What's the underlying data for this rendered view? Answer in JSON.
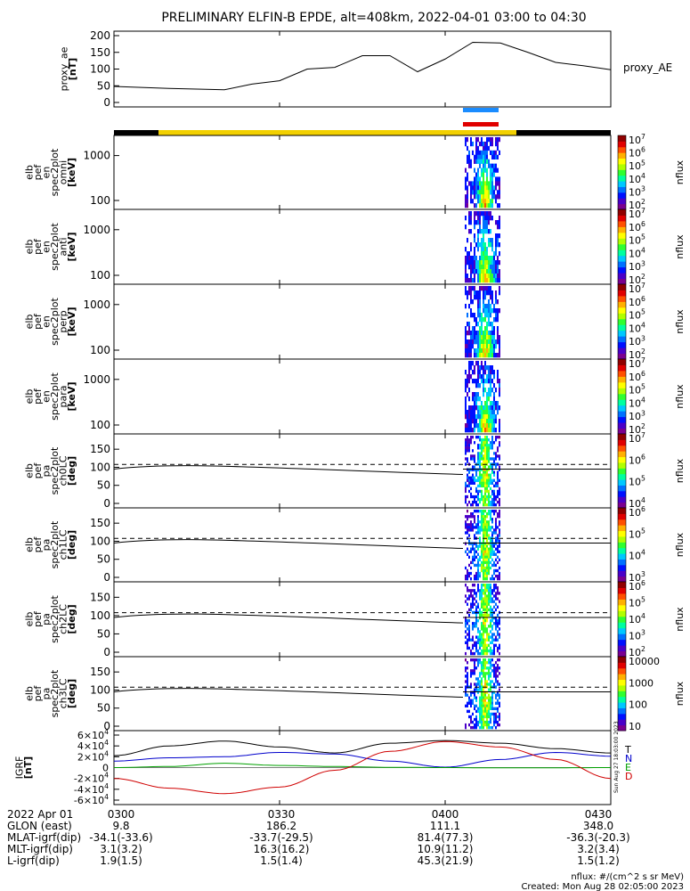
{
  "title": "PRELIMINARY ELFIN-B EPDE, alt=408km, 2022-04-01 03:00 to 04:30",
  "colors": {
    "ae": "#000000",
    "sunlit_bar": "#f2d000",
    "night_bar": "#000000",
    "blue_marker": "#1a8cff",
    "red_marker": "#e00000",
    "igrf_T": "#000000",
    "igrf_N": "#0000cc",
    "igrf_E": "#00a000",
    "igrf_D": "#d00000"
  },
  "chart_data": [
    {
      "type": "line",
      "panel": "proxy_ae",
      "ylabel": [
        "proxy_ae",
        "[nT]"
      ],
      "right_label": "proxy_AE",
      "ylim": [
        0,
        200
      ],
      "yticks": [
        "0",
        "50",
        "100",
        "150",
        "200"
      ],
      "x_minutes": [
        0,
        10,
        15,
        20,
        25,
        30,
        35,
        40,
        45,
        50,
        55,
        60,
        65,
        70,
        75,
        80,
        85,
        90
      ],
      "values": [
        48,
        42,
        40,
        38,
        55,
        65,
        100,
        105,
        140,
        140,
        92,
        130,
        180,
        178,
        150,
        120,
        110,
        98
      ]
    },
    {
      "type": "heatmap",
      "panel": "omni",
      "ylabel": [
        "elb",
        "pef",
        "en",
        "spec2plot",
        "omni",
        "[keV]"
      ],
      "scale": "log",
      "yticks": [
        "100",
        "1000"
      ],
      "colorbar_label": "nflux",
      "colorbar_ticks": [
        "10^2",
        "10^3",
        "10^4",
        "10^5",
        "10^6",
        "10^7"
      ]
    },
    {
      "type": "heatmap",
      "panel": "anti",
      "ylabel": [
        "elb",
        "pef",
        "en",
        "spec2plot",
        "anti",
        "[keV]"
      ],
      "scale": "log",
      "yticks": [
        "100",
        "1000"
      ],
      "colorbar_label": "nflux",
      "colorbar_ticks": [
        "10^2",
        "10^3",
        "10^4",
        "10^5",
        "10^6",
        "10^7"
      ]
    },
    {
      "type": "heatmap",
      "panel": "perp",
      "ylabel": [
        "elb",
        "pef",
        "en",
        "spec2plot",
        "perp",
        "[keV]"
      ],
      "scale": "log",
      "yticks": [
        "100",
        "1000"
      ],
      "colorbar_label": "nflux",
      "colorbar_ticks": [
        "10^2",
        "10^3",
        "10^4",
        "10^5",
        "10^6",
        "10^7"
      ]
    },
    {
      "type": "heatmap",
      "panel": "para",
      "ylabel": [
        "elb",
        "pef",
        "en",
        "spec2plot",
        "para",
        "[keV]"
      ],
      "scale": "log",
      "yticks": [
        "100",
        "1000"
      ],
      "colorbar_label": "nflux",
      "colorbar_ticks": [
        "10^2",
        "10^3",
        "10^4",
        "10^5",
        "10^6",
        "10^7"
      ]
    },
    {
      "type": "heatmap",
      "panel": "ch0LC",
      "ylabel": [
        "elb",
        "pef",
        "pa",
        "spec2plot",
        "ch0LC",
        "[deg]"
      ],
      "ylim": [
        0,
        180
      ],
      "yticks": [
        "0",
        "50",
        "100",
        "150"
      ],
      "colorbar_label": "nflux",
      "colorbar_ticks": [
        "10^4",
        "10^5",
        "10^6",
        "10^7"
      ]
    },
    {
      "type": "heatmap",
      "panel": "ch1LC",
      "ylabel": [
        "elb",
        "pef",
        "pa",
        "spec2plot",
        "ch1LC",
        "[deg]"
      ],
      "ylim": [
        0,
        180
      ],
      "yticks": [
        "0",
        "50",
        "100",
        "150"
      ],
      "colorbar_label": "nflux",
      "colorbar_ticks": [
        "10^3",
        "10^4",
        "10^5",
        "10^6"
      ]
    },
    {
      "type": "heatmap",
      "panel": "ch2LC",
      "ylabel": [
        "elb",
        "pef",
        "pa",
        "spec2plot",
        "ch2LC",
        "[deg]"
      ],
      "ylim": [
        0,
        180
      ],
      "yticks": [
        "0",
        "50",
        "100",
        "150"
      ],
      "colorbar_label": "nflux",
      "colorbar_ticks": [
        "10^2",
        "10^3",
        "10^4",
        "10^5",
        "10^6"
      ]
    },
    {
      "type": "heatmap",
      "panel": "ch3LC",
      "ylabel": [
        "elb",
        "pef",
        "pa",
        "spec2plot",
        "ch3LC",
        "[deg]"
      ],
      "ylim": [
        0,
        180
      ],
      "yticks": [
        "0",
        "50",
        "100",
        "150"
      ],
      "colorbar_label": "nflux",
      "colorbar_ticks": [
        "10",
        "100",
        "1000",
        "10000"
      ]
    },
    {
      "type": "line",
      "panel": "igrf",
      "ylabel": [
        "IGRF",
        "[nT]"
      ],
      "ylim": [
        -60000,
        60000
      ],
      "yticks": [
        "-6×10^4",
        "-4×10^4",
        "-2×10^4",
        "0",
        "2×10^4",
        "4×10^4",
        "6×10^4"
      ],
      "legend": [
        "T",
        "N",
        "E",
        "D"
      ],
      "side_stamp": "Sun Aug 27 18:03:00 2023",
      "x_minutes": [
        0,
        10,
        20,
        30,
        40,
        50,
        60,
        70,
        80,
        90
      ],
      "series": [
        {
          "name": "T",
          "values": [
            22000,
            40000,
            49000,
            38000,
            27000,
            45000,
            50000,
            45000,
            35000,
            27000
          ]
        },
        {
          "name": "N",
          "values": [
            12000,
            18000,
            20000,
            28000,
            25000,
            12000,
            800,
            15000,
            28000,
            21000
          ]
        },
        {
          "name": "E",
          "values": [
            0,
            2000,
            8000,
            4000,
            2000,
            500,
            0,
            -500,
            -300,
            0
          ]
        },
        {
          "name": "D",
          "values": [
            -20000,
            -38000,
            -48000,
            -36000,
            -5000,
            30000,
            48000,
            38000,
            15000,
            -20000
          ]
        }
      ]
    }
  ],
  "x_axis": {
    "ticks": [
      "0300",
      "0330",
      "0400",
      "0430"
    ],
    "rows": [
      {
        "label": "2022 Apr 01",
        "values": [
          "0300",
          "0330",
          "0400",
          "0430"
        ]
      },
      {
        "label": "GLON (east)",
        "values": [
          "9.8",
          "186.2",
          "111.1",
          "348.0"
        ]
      },
      {
        "label": "MLAT-igrf(dip)",
        "values": "-34.1(-33.6) -33.7(-29.5) 81.4(77.3) -36.3(-20.3)"
      },
      {
        "label": "MLT-igrf(dip)",
        "values": "3.1(3.2) 16.3(16.2) 10.9(11.2) 3.2(3.4)"
      },
      {
        "label": "L-igrf(dip)",
        "values": "1.9(1.5) 1.5(1.4) 45.3(21.9) 1.5(1.2)"
      }
    ]
  },
  "footer": {
    "units": "nflux: #/(cm^2 s sr MeV)",
    "created": "Created: Mon Aug 28 02:05:00 2023"
  }
}
